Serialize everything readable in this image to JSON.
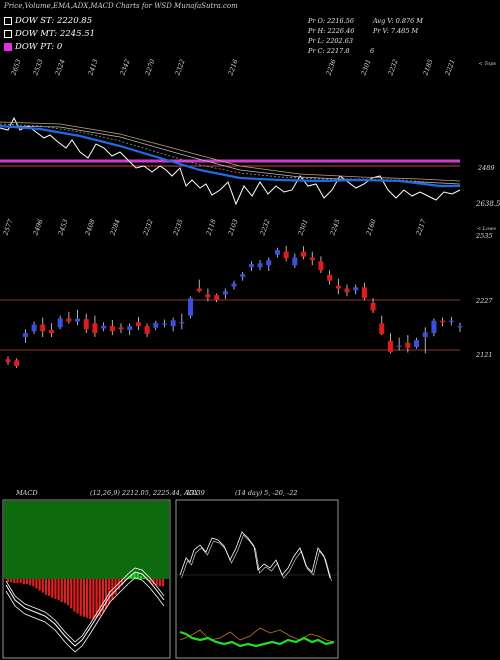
{
  "title": "Price,Volume,EMA,ADX,MACD Charts for WSD MunafaSutra.com",
  "legend": [
    {
      "label": "DOW ST: 2220.85",
      "color": "#ffffff"
    },
    {
      "label": "DOW MT: 2245.51",
      "color": "#ffffff"
    },
    {
      "label": "DOW PT: 0",
      "color": "#e030e0"
    }
  ],
  "stats": {
    "open": "Pr O: 2216.56",
    "high": "Pr H: 2226.46",
    "low": "Pr L: 2202.63",
    "close": "Pr C: 2217.8",
    "avg_vol": "Avg V: 0.876 M",
    "vol": "Pr V: 7.485 M",
    "extra": "6"
  },
  "colors": {
    "up": "#3a4fe0",
    "down": "#e01c1c",
    "ema_fast": "#1f6ae6",
    "pt_line": "#d23cd2",
    "level_line": "#c04848"
  },
  "chart_data": [
    {
      "type": "line",
      "title": "",
      "top_ticks": [
        "2653",
        "2533",
        "2524",
        "2413",
        "2342",
        "2270",
        "2322",
        "2216",
        "2236",
        "2301",
        "2232",
        "2185",
        "2221"
      ],
      "top_right_label": "< Tops",
      "bottom_ticks": [
        "2577",
        "2496",
        "2453",
        "2408",
        "2284",
        "2232",
        "2235",
        "2118",
        "2103",
        "2232",
        "2301",
        "2245",
        "2160",
        "2217"
      ],
      "bottom_right_label": "< Lows",
      "levels": [
        "2489",
        "2638.51"
      ]
    },
    {
      "type": "candlestick",
      "levels": [
        "2535",
        "2227",
        "2121"
      ],
      "candles": [
        {
          "o": 2133,
          "h": 2140,
          "l": 2118,
          "c": 2125
        },
        {
          "o": 2130,
          "h": 2135,
          "l": 2110,
          "c": 2115
        },
        {
          "o": 2190,
          "h": 2210,
          "l": 2175,
          "c": 2200
        },
        {
          "o": 2205,
          "h": 2230,
          "l": 2198,
          "c": 2222
        },
        {
          "o": 2222,
          "h": 2240,
          "l": 2190,
          "c": 2205
        },
        {
          "o": 2208,
          "h": 2225,
          "l": 2190,
          "c": 2200
        },
        {
          "o": 2215,
          "h": 2245,
          "l": 2210,
          "c": 2238
        },
        {
          "o": 2238,
          "h": 2255,
          "l": 2225,
          "c": 2230
        },
        {
          "o": 2230,
          "h": 2260,
          "l": 2220,
          "c": 2237
        },
        {
          "o": 2236,
          "h": 2250,
          "l": 2200,
          "c": 2210
        },
        {
          "o": 2225,
          "h": 2245,
          "l": 2190,
          "c": 2200
        },
        {
          "o": 2212,
          "h": 2228,
          "l": 2205,
          "c": 2219
        },
        {
          "o": 2218,
          "h": 2234,
          "l": 2195,
          "c": 2205
        },
        {
          "o": 2215,
          "h": 2225,
          "l": 2200,
          "c": 2210
        },
        {
          "o": 2208,
          "h": 2225,
          "l": 2195,
          "c": 2218
        },
        {
          "o": 2228,
          "h": 2242,
          "l": 2208,
          "c": 2218
        },
        {
          "o": 2218,
          "h": 2225,
          "l": 2190,
          "c": 2198
        },
        {
          "o": 2214,
          "h": 2232,
          "l": 2208,
          "c": 2226
        },
        {
          "o": 2225,
          "h": 2235,
          "l": 2215,
          "c": 2225
        },
        {
          "o": 2218,
          "h": 2240,
          "l": 2205,
          "c": 2233
        },
        {
          "o": 2226,
          "h": 2250,
          "l": 2210,
          "c": 2228
        },
        {
          "o": 2245,
          "h": 2295,
          "l": 2238,
          "c": 2290
        },
        {
          "o": 2315,
          "h": 2338,
          "l": 2305,
          "c": 2308
        },
        {
          "o": 2300,
          "h": 2315,
          "l": 2282,
          "c": 2292
        },
        {
          "o": 2298,
          "h": 2302,
          "l": 2280,
          "c": 2285
        },
        {
          "o": 2300,
          "h": 2315,
          "l": 2288,
          "c": 2308
        },
        {
          "o": 2320,
          "h": 2335,
          "l": 2312,
          "c": 2328
        },
        {
          "o": 2345,
          "h": 2358,
          "l": 2335,
          "c": 2352
        },
        {
          "o": 2370,
          "h": 2385,
          "l": 2360,
          "c": 2378
        },
        {
          "o": 2370,
          "h": 2388,
          "l": 2362,
          "c": 2380
        },
        {
          "o": 2375,
          "h": 2395,
          "l": 2360,
          "c": 2388
        },
        {
          "o": 2402,
          "h": 2420,
          "l": 2395,
          "c": 2414
        },
        {
          "o": 2410,
          "h": 2425,
          "l": 2385,
          "c": 2393
        },
        {
          "o": 2375,
          "h": 2405,
          "l": 2368,
          "c": 2395
        },
        {
          "o": 2410,
          "h": 2424,
          "l": 2390,
          "c": 2397
        },
        {
          "o": 2395,
          "h": 2410,
          "l": 2375,
          "c": 2388
        },
        {
          "o": 2385,
          "h": 2398,
          "l": 2355,
          "c": 2362
        },
        {
          "o": 2350,
          "h": 2362,
          "l": 2325,
          "c": 2335
        },
        {
          "o": 2322,
          "h": 2340,
          "l": 2300,
          "c": 2315
        },
        {
          "o": 2315,
          "h": 2325,
          "l": 2295,
          "c": 2305
        },
        {
          "o": 2310,
          "h": 2325,
          "l": 2300,
          "c": 2318
        },
        {
          "o": 2318,
          "h": 2330,
          "l": 2285,
          "c": 2290
        },
        {
          "o": 2278,
          "h": 2290,
          "l": 2252,
          "c": 2258
        },
        {
          "o": 2225,
          "h": 2245,
          "l": 2195,
          "c": 2198
        },
        {
          "o": 2180,
          "h": 2200,
          "l": 2148,
          "c": 2152
        },
        {
          "o": 2168,
          "h": 2188,
          "l": 2155,
          "c": 2168
        },
        {
          "o": 2175,
          "h": 2195,
          "l": 2150,
          "c": 2162
        },
        {
          "o": 2164,
          "h": 2188,
          "l": 2160,
          "c": 2182
        },
        {
          "o": 2190,
          "h": 2215,
          "l": 2148,
          "c": 2202
        },
        {
          "o": 2200,
          "h": 2238,
          "l": 2192,
          "c": 2232
        },
        {
          "o": 2232,
          "h": 2240,
          "l": 2218,
          "c": 2228
        },
        {
          "o": 2230,
          "h": 2242,
          "l": 2220,
          "c": 2232
        },
        {
          "o": 2216.56,
          "h": 2226.46,
          "l": 2202.63,
          "c": 2217.8
        }
      ]
    },
    {
      "type": "bar",
      "title": "MACD",
      "label": "MACD",
      "params": "(12,26,9) 2212.05, 2225.44, -13.39",
      "histogram": [
        -3,
        -3,
        -4,
        -4,
        -4,
        -5,
        -5,
        -6,
        -7,
        -9,
        -11,
        -13,
        -15,
        -16,
        -18,
        -19,
        -20,
        -22,
        -23,
        -25,
        -28,
        -31,
        -33,
        -35,
        -36,
        -37,
        -38,
        -38,
        -37,
        -35,
        -32,
        -28,
        -24,
        -20,
        -15,
        -10,
        -6,
        -2,
        1,
        4,
        6,
        5,
        3,
        1,
        -1,
        -3,
        -5,
        -6,
        -7,
        -7
      ]
    },
    {
      "type": "line",
      "title": "ADX",
      "label": "ADX",
      "params": "(14 day) 5, -20, -22"
    }
  ]
}
